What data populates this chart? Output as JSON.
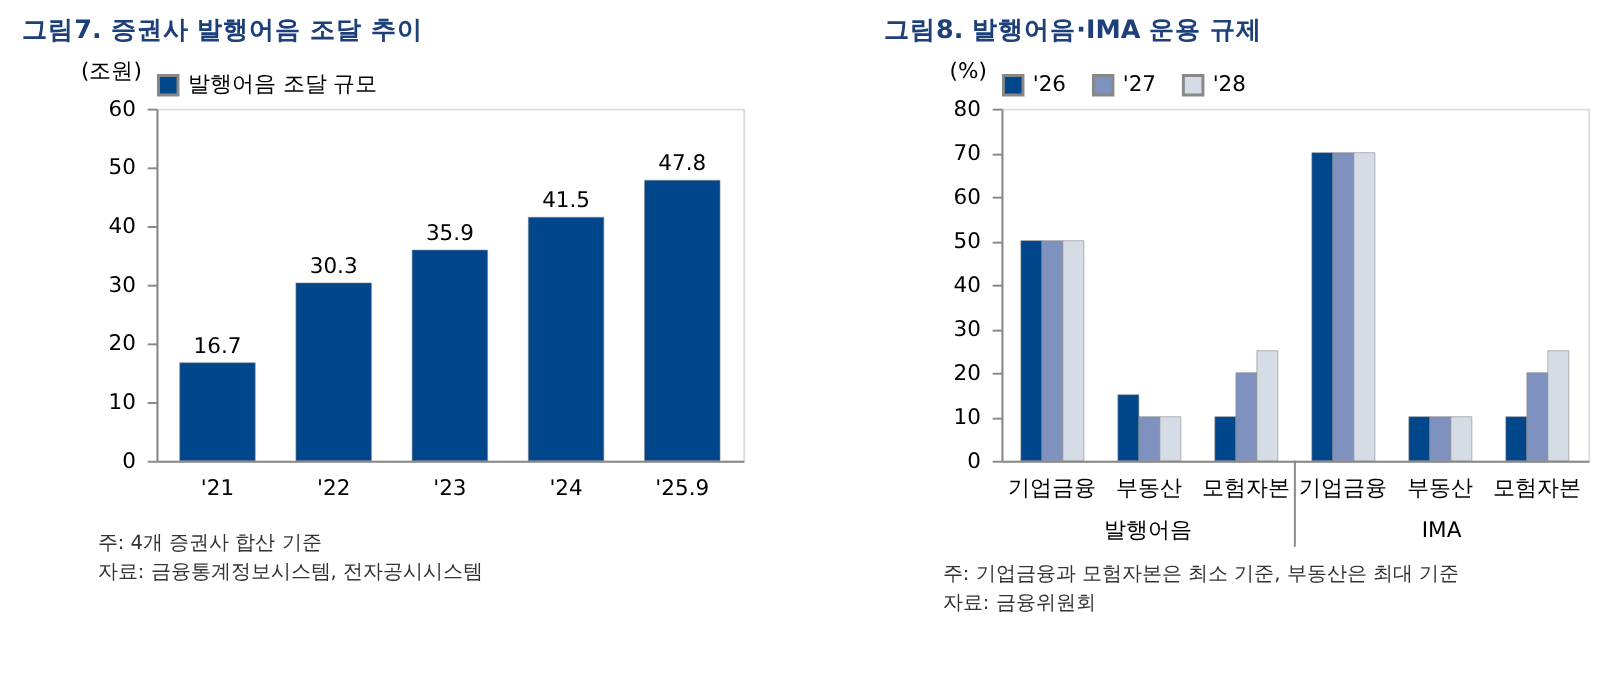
{
  "chart_data": [
    {
      "type": "bar",
      "title": "그림7. 증권사 발행어음 조달 추이",
      "ylabel": "(조원)",
      "categories": [
        "'21",
        "'22",
        "'23",
        "'24",
        "'25.9"
      ],
      "series": [
        {
          "name": "발행어음 조달 규모",
          "color": "#00468b",
          "values": [
            16.7,
            30.3,
            35.9,
            41.5,
            47.8
          ]
        }
      ],
      "ylim": [
        0,
        60
      ],
      "yticks": [
        0,
        10,
        20,
        30,
        40,
        50,
        60
      ],
      "grid": false,
      "legend": "top",
      "data_labels": true,
      "annotations": [
        "주: 4개 증권사 합산 기준",
        "자료: 금융통계정보시스템, 전자공시시스템"
      ]
    },
    {
      "type": "bar",
      "title": "그림8. 발행어음·IMA 운용 규제",
      "ylabel": "(%)",
      "categories": [
        "기업금융",
        "부동산",
        "모험자본",
        "기업금융",
        "부동산",
        "모험자본"
      ],
      "series": [
        {
          "name": "'26",
          "color": "#00468b",
          "values": [
            50,
            15,
            10,
            70,
            10,
            10
          ]
        },
        {
          "name": "'27",
          "color": "#7f92bf",
          "values": [
            50,
            10,
            20,
            70,
            10,
            20
          ]
        },
        {
          "name": "'28",
          "color": "#d5dce6",
          "values": [
            50,
            10,
            25,
            70,
            10,
            25
          ]
        }
      ],
      "ylim": [
        0,
        80
      ],
      "yticks": [
        0,
        10,
        20,
        30,
        40,
        50,
        60,
        70,
        80
      ],
      "grid": false,
      "legend": "top",
      "annotations": [
        "발행어음",
        "IMA",
        "주: 기업금융과 모험자본은 최소 기준, 부동산은 최대 기준",
        "자료: 금융위원회"
      ]
    }
  ]
}
